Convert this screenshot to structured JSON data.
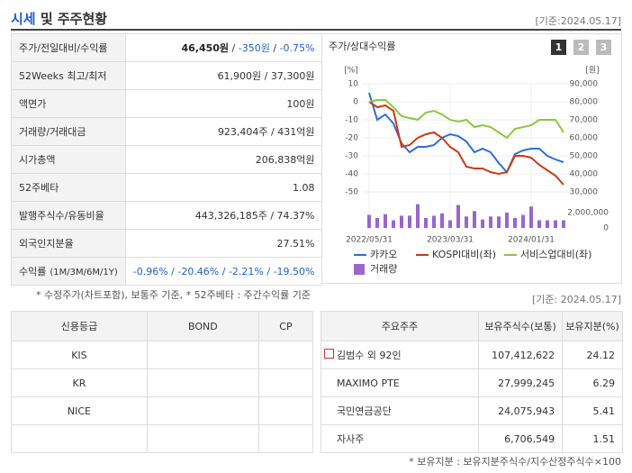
{
  "header": {
    "title_highlight": "시세",
    "title_rest": "및 주주현황",
    "date": "[기준:2024.05.17]"
  },
  "quote_table": {
    "rows": [
      {
        "label": "주가/전일대비/수익률",
        "value_parts": [
          {
            "text": "46,450원",
            "style": "bold"
          },
          {
            "text": " / "
          },
          {
            "text": "-350원",
            "style": "down"
          },
          {
            "text": " / "
          },
          {
            "text": "-0.75%",
            "style": "down"
          }
        ]
      },
      {
        "label": "52Weeks 최고/최저",
        "value": "61,900원 / 37,300원"
      },
      {
        "label": "액면가",
        "value": "100원"
      },
      {
        "label": "거래량/거래대금",
        "value": "923,404주 / 431억원"
      },
      {
        "label": "시가총액",
        "value": "206,838억원"
      },
      {
        "label": "52주베타",
        "value": "1.08"
      },
      {
        "label": "발행주식수/유동비율",
        "value": "443,326,185주 / 74.37%"
      },
      {
        "label": "외국인지분율",
        "value": "27.51%"
      },
      {
        "label": "수익률",
        "label_note": "(1M/3M/6M/1Y)",
        "value": "-0.96% / -20.46% / -2.21% / -19.50%",
        "value_style": "down"
      }
    ],
    "note": "* 수정주가(차트포함), 보통주 기준, * 52주베타 : 주간수익률 기준"
  },
  "chart_data": {
    "type": "line",
    "title": "주가/상대수익률",
    "views": [
      "1",
      "2",
      "3"
    ],
    "active_view": 0,
    "categories": [
      "2022/05/31",
      null,
      null,
      null,
      null,
      null,
      null,
      null,
      null,
      null,
      "2023/03/31",
      null,
      null,
      null,
      null,
      null,
      null,
      null,
      null,
      null,
      "2024/01/31",
      null,
      null,
      null,
      null
    ],
    "ylabel": "[%]",
    "ylim": [
      -50,
      10
    ],
    "yticks": [
      10,
      0,
      -10,
      -20,
      -30,
      -40,
      -50
    ],
    "y2label": "[원]",
    "y2lim": [
      30000,
      90000
    ],
    "y2ticks": [
      {
        "value": 90000,
        "label": "90,000"
      },
      {
        "value": 80000,
        "label": "80,000"
      },
      {
        "value": 70000,
        "label": "70,000"
      },
      {
        "value": 60000,
        "label": "60,000"
      },
      {
        "value": 50000,
        "label": "50,000"
      },
      {
        "value": 40000,
        "label": "40,000"
      },
      {
        "value": 30000,
        "label": "30,000"
      }
    ],
    "volume_lim": [
      0,
      4000000
    ],
    "volume_ticks": [
      {
        "value": 2000000,
        "label": "2,000,000"
      },
      0
    ],
    "grid": true,
    "series": [
      {
        "name": "카카오",
        "color": "#2e6fd4",
        "axis": "y2",
        "values": [
          85000,
          70000,
          73000,
          68000,
          57000,
          52000,
          55000,
          55000,
          56000,
          60000,
          62000,
          61000,
          58000,
          52000,
          54000,
          52000,
          46000,
          41000,
          51000,
          53000,
          54000,
          54000,
          50000,
          48000,
          46450
        ]
      },
      {
        "name": "KOSPI대비(좌)",
        "color": "#cc3b12",
        "values": [
          0,
          -3,
          -2,
          -5,
          -25,
          -24,
          -20,
          -18,
          -17,
          -20,
          -25,
          -28,
          -36,
          -37,
          -37,
          -39,
          -40,
          -39,
          -30,
          -30,
          -31,
          -35,
          -38,
          -41,
          -46
        ]
      },
      {
        "name": "서비스업대비(좌)",
        "color": "#8cc63f",
        "values": [
          0,
          1,
          1,
          -3,
          -8,
          -9,
          -10,
          -6,
          -5,
          -7,
          -10,
          -11,
          -10,
          -14,
          -13,
          -14,
          -17,
          -20,
          -15,
          -14,
          -13,
          -10,
          -10,
          -10,
          -17
        ]
      },
      {
        "name": "거래량",
        "type": "bar",
        "axis": "volume",
        "color": "#9966cc",
        "values": [
          1700000,
          1300000,
          1800000,
          1000000,
          1600000,
          1600000,
          3100000,
          1300000,
          1600000,
          1900000,
          1000000,
          3000000,
          1500000,
          2200000,
          1100000,
          1500000,
          1500000,
          2000000,
          1300000,
          1700000,
          2800000,
          1000000,
          1000000,
          1000000,
          1000000
        ]
      }
    ]
  },
  "credit_table": {
    "columns": [
      "신용등급",
      "BOND",
      "CP"
    ],
    "rows": [
      "KIS",
      "KR",
      "NICE"
    ]
  },
  "holders_table": {
    "date": "[기준: 2024.05.17]",
    "columns": [
      "주요주주",
      "보유주식수(보통)",
      "보유지분(%)"
    ],
    "rows": [
      [
        "김범수 외 92인",
        "107,412,622",
        "24.12"
      ],
      [
        "MAXIMO PTE",
        "27,999,245",
        "6.29"
      ],
      [
        "국민연금공단",
        "24,075,943",
        "5.41"
      ],
      [
        "자사주",
        "6,706,549",
        "1.51"
      ]
    ],
    "note": "* 보유지분 : 보유지분주식수/지수산정주식수×100"
  }
}
